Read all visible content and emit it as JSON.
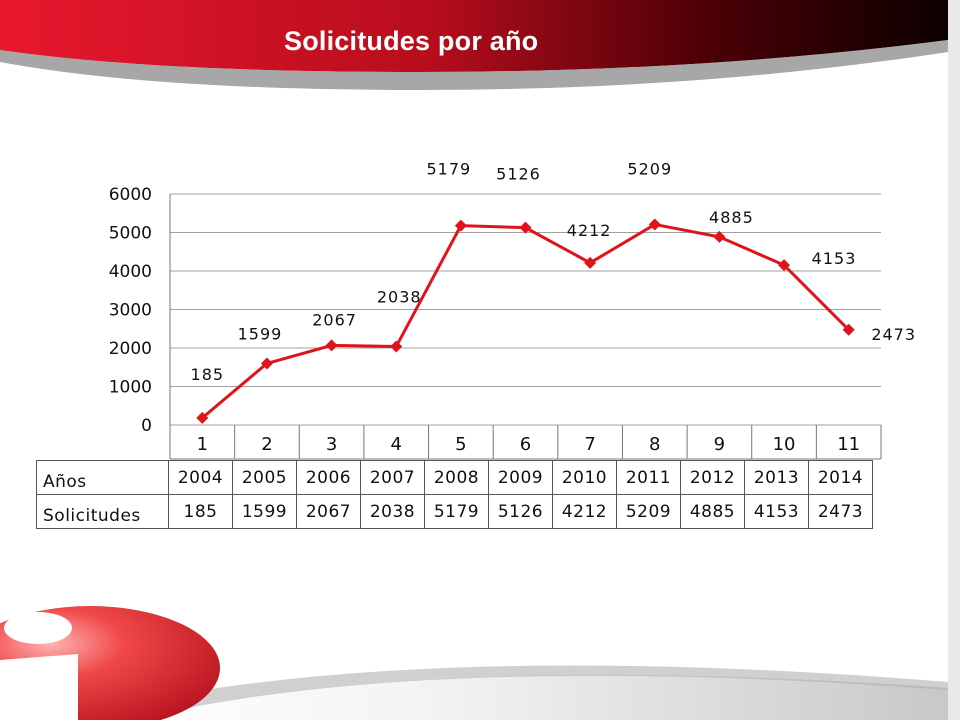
{
  "slide": {
    "title": "Solicitudes por año",
    "colors": {
      "header_red": "#d0142a",
      "header_dark": "#1a0000",
      "line_red": "#e0131b",
      "grid": "#a0a0a0"
    },
    "decor": "red-sphere-logo"
  },
  "chart_data": {
    "type": "line",
    "title": "",
    "xlabel": "",
    "ylabel": "",
    "categories": [
      "1",
      "2",
      "3",
      "4",
      "5",
      "6",
      "7",
      "8",
      "9",
      "10",
      "11"
    ],
    "series": [
      {
        "values": [
          185,
          1599,
          2067,
          2038,
          5179,
          5126,
          4212,
          5209,
          4885,
          4153,
          2473
        ],
        "color": "#e0131b",
        "marker": "diamond"
      }
    ],
    "data_labels": [
      "185",
      "1599",
      "2067",
      "2038",
      "5179",
      "5126",
      "4212",
      "5209",
      "4885",
      "4153",
      "2473"
    ],
    "y_ticks": [
      "0",
      "1000",
      "2000",
      "3000",
      "4000",
      "5000",
      "6000"
    ],
    "ylim": [
      0,
      6000
    ],
    "grid": true,
    "legend": "none"
  },
  "data_table": {
    "row_headers": [
      "Años",
      "Solicitudes"
    ],
    "years": [
      "2004",
      "2005",
      "2006",
      "2007",
      "2008",
      "2009",
      "2010",
      "2011",
      "2012",
      "2013",
      "2014"
    ],
    "solicitudes": [
      "185",
      "1599",
      "2067",
      "2038",
      "5179",
      "5126",
      "4212",
      "5209",
      "4885",
      "4153",
      "2473"
    ]
  }
}
